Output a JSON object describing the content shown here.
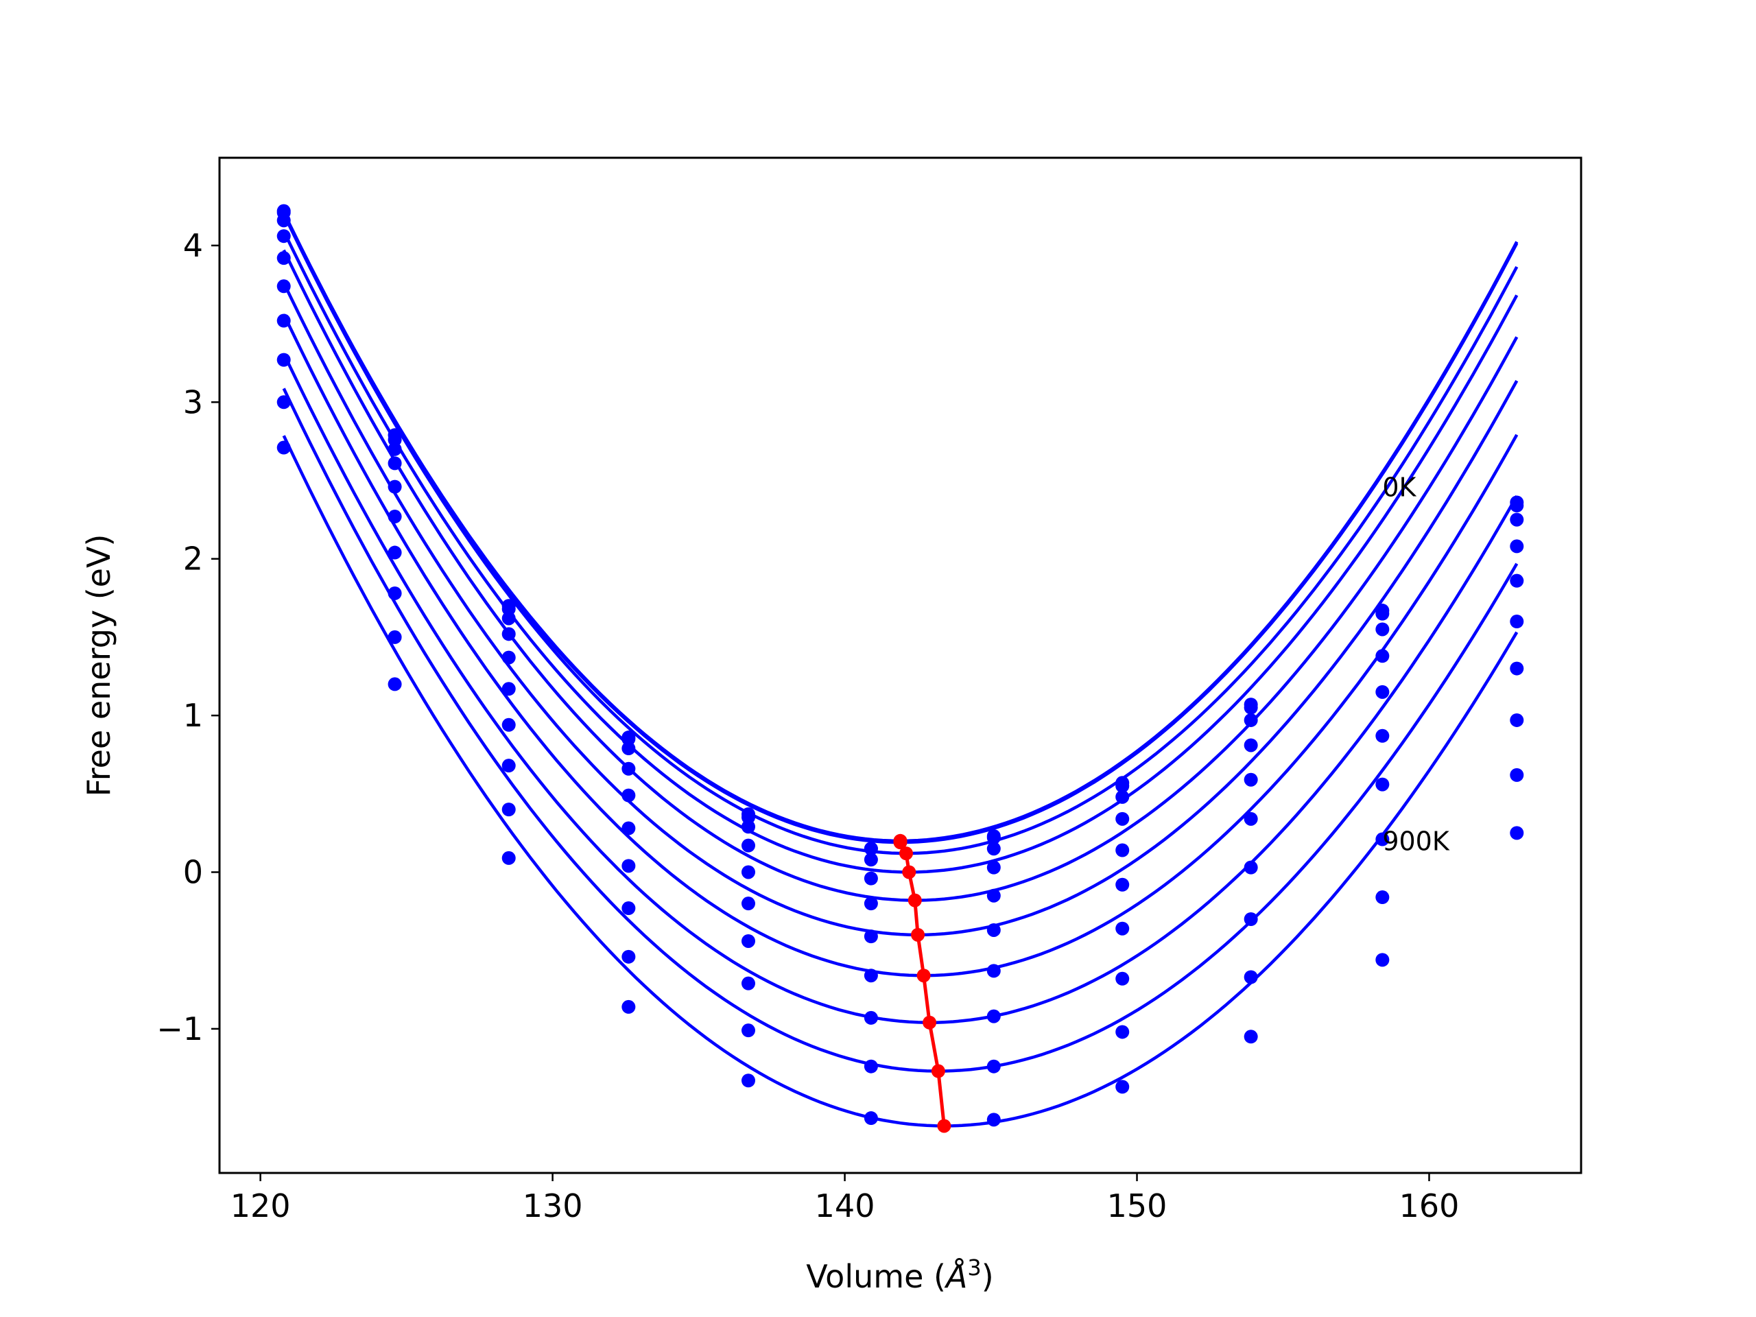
{
  "chart_data": {
    "type": "line",
    "title": "",
    "xlabel": "Volume (",
    "xlabel_unit_base": "Å",
    "xlabel_unit_exp": "3",
    "xlabel_close": ")",
    "ylabel": "Free energy (eV)",
    "xlim": [
      118.6,
      165.2
    ],
    "ylim": [
      -1.92,
      4.56
    ],
    "x_ticks": [
      120,
      130,
      140,
      150,
      160
    ],
    "x_tick_labels": [
      "120",
      "130",
      "140",
      "150",
      "160"
    ],
    "y_ticks": [
      -1,
      0,
      1,
      2,
      3,
      4
    ],
    "y_tick_labels": [
      "−1",
      "0",
      "1",
      "2",
      "3",
      "4"
    ],
    "grid": false,
    "volumes": [
      120.8,
      124.6,
      128.5,
      132.6,
      136.7,
      140.9,
      145.1,
      149.5,
      153.9,
      158.4,
      163.0
    ],
    "series_color": "#0000ff",
    "series": [
      {
        "name": "0K",
        "fit": {
          "vmin": 141.9,
          "fmin": 0.2,
          "k": 0.0088,
          "c": 1e-05
        },
        "values": [
          4.22,
          2.79,
          1.7,
          0.86,
          0.37,
          0.15,
          0.23,
          0.57,
          1.07,
          1.67,
          2.36
        ]
      },
      {
        "name": "",
        "fit": {
          "vmin": 141.9,
          "fmin": 0.19,
          "k": 0.0088,
          "c": 1e-05
        },
        "values": [
          4.21,
          2.76,
          1.68,
          0.85,
          0.35,
          0.15,
          0.22,
          0.55,
          1.05,
          1.65,
          2.34
        ]
      },
      {
        "name": "",
        "fit": {
          "vmin": 142.1,
          "fmin": 0.12,
          "k": 0.00878,
          "c": 1e-05
        },
        "values": [
          4.16,
          2.7,
          1.62,
          0.79,
          0.29,
          0.08,
          0.15,
          0.48,
          0.97,
          1.55,
          2.25
        ]
      },
      {
        "name": "",
        "fit": {
          "vmin": 142.2,
          "fmin": 0.0,
          "k": 0.00872,
          "c": 1e-05
        },
        "values": [
          4.06,
          2.61,
          1.52,
          0.66,
          0.17,
          -0.04,
          0.03,
          0.34,
          0.81,
          1.38,
          2.08
        ]
      },
      {
        "name": "",
        "fit": {
          "vmin": 142.4,
          "fmin": -0.18,
          "k": 0.00868,
          "c": 1e-05
        },
        "values": [
          3.92,
          2.46,
          1.37,
          0.49,
          0.0,
          -0.2,
          -0.15,
          0.14,
          0.59,
          1.15,
          1.86
        ]
      },
      {
        "name": "",
        "fit": {
          "vmin": 142.5,
          "fmin": -0.4,
          "k": 0.00862,
          "c": 1e-05
        },
        "values": [
          3.74,
          2.27,
          1.17,
          0.28,
          -0.2,
          -0.41,
          -0.37,
          -0.08,
          0.34,
          0.87,
          1.6
        ]
      },
      {
        "name": "",
        "fit": {
          "vmin": 142.7,
          "fmin": -0.66,
          "k": 0.00858,
          "c": 1e-05
        },
        "values": [
          3.52,
          2.04,
          0.94,
          0.04,
          -0.44,
          -0.66,
          -0.63,
          -0.36,
          0.03,
          0.56,
          1.3
        ]
      },
      {
        "name": "",
        "fit": {
          "vmin": 142.9,
          "fmin": -0.96,
          "k": 0.00852,
          "c": 1e-05
        },
        "values": [
          3.27,
          1.78,
          0.68,
          -0.23,
          -0.71,
          -0.93,
          -0.92,
          -0.68,
          -0.3,
          0.21,
          0.97
        ]
      },
      {
        "name": "",
        "fit": {
          "vmin": 143.2,
          "fmin": -1.27,
          "k": 0.00846,
          "c": 1e-05
        },
        "values": [
          3.0,
          1.5,
          0.4,
          -0.54,
          -1.01,
          -1.24,
          -1.24,
          -1.02,
          -0.67,
          -0.16,
          0.62
        ]
      },
      {
        "name": "900K",
        "fit": {
          "vmin": 143.4,
          "fmin": -1.62,
          "k": 0.0084,
          "c": 1e-05
        },
        "values": [
          2.71,
          1.2,
          0.09,
          -0.86,
          -1.33,
          -1.57,
          -1.58,
          -1.37,
          -1.05,
          -0.56,
          0.25
        ]
      }
    ],
    "minima_series": {
      "color": "#ff0000",
      "x": [
        141.9,
        141.9,
        142.1,
        142.2,
        142.4,
        142.5,
        142.7,
        142.9,
        143.2,
        143.4
      ],
      "y": [
        0.2,
        0.19,
        0.12,
        0.0,
        -0.18,
        -0.4,
        -0.66,
        -0.96,
        -1.27,
        -1.62
      ]
    },
    "annotations": [
      {
        "text": "0K",
        "x": 158.4,
        "y": 2.4
      },
      {
        "text": "900K",
        "x": 158.4,
        "y": 0.14
      }
    ]
  }
}
